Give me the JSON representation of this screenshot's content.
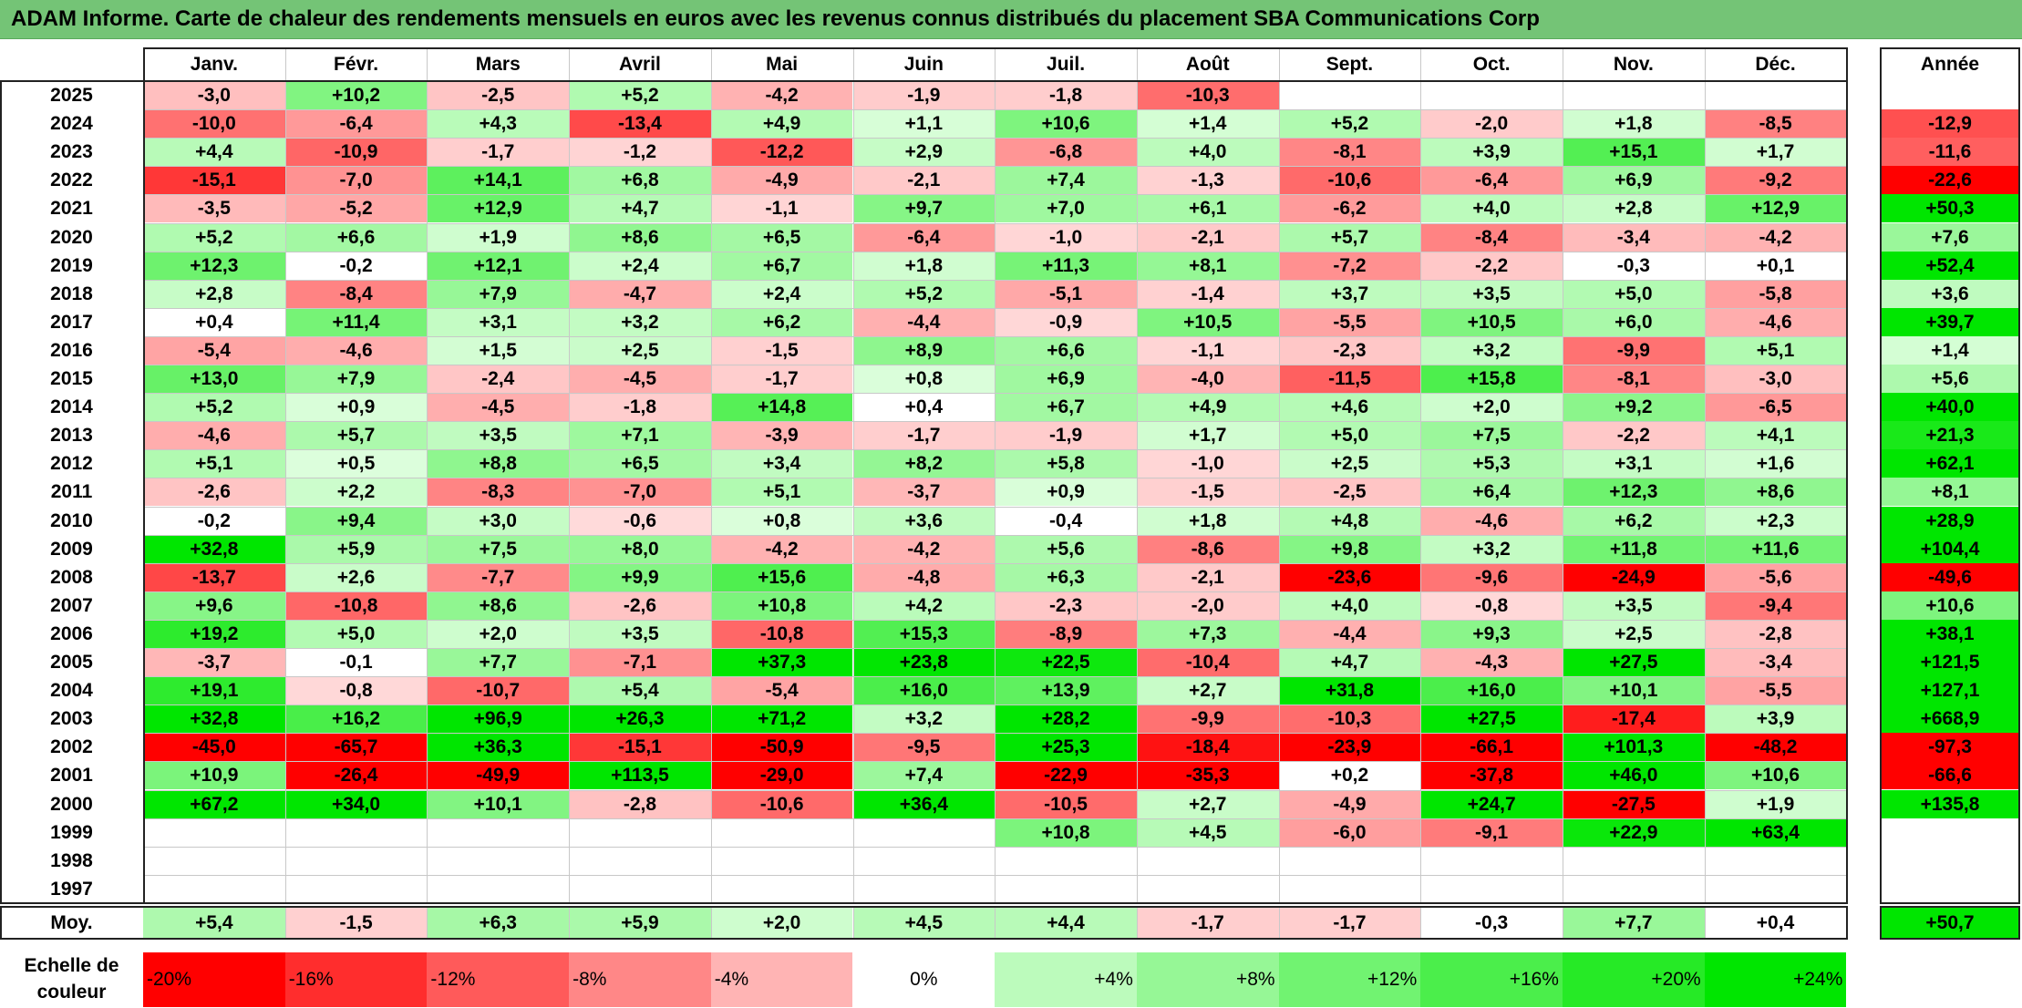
{
  "title": "ADAM Informe. Carte de chaleur des rendements mensuels en euros avec les revenus connus distribués du placement SBA Communications Corp",
  "colors": {
    "title_bar": "#74c476",
    "neg_max": "#ff0000",
    "pos_max": "#00e600",
    "neutral": "#ffffff"
  },
  "chart_data": {
    "type": "heatmap",
    "months": [
      "Janv.",
      "Févr.",
      "Mars",
      "Avril",
      "Mai",
      "Juin",
      "Juil.",
      "Août",
      "Sept.",
      "Oct.",
      "Nov.",
      "Déc."
    ],
    "year_header": "Année",
    "avg_label": "Moy.",
    "rows": [
      {
        "year": "2025",
        "values": [
          "-3,0",
          "+10,2",
          "-2,5",
          "+5,2",
          "-4,2",
          "-1,9",
          "-1,8",
          "-10,3",
          "",
          "",
          "",
          ""
        ],
        "annual": ""
      },
      {
        "year": "2024",
        "values": [
          "-10,0",
          "-6,4",
          "+4,3",
          "-13,4",
          "+4,9",
          "+1,1",
          "+10,6",
          "+1,4",
          "+5,2",
          "-2,0",
          "+1,8",
          "-8,5"
        ],
        "annual": "-12,9"
      },
      {
        "year": "2023",
        "values": [
          "+4,4",
          "-10,9",
          "-1,7",
          "-1,2",
          "-12,2",
          "+2,9",
          "-6,8",
          "+4,0",
          "-8,1",
          "+3,9",
          "+15,1",
          "+1,7"
        ],
        "annual": "-11,6"
      },
      {
        "year": "2022",
        "values": [
          "-15,1",
          "-7,0",
          "+14,1",
          "+6,8",
          "-4,9",
          "-2,1",
          "+7,4",
          "-1,3",
          "-10,6",
          "-6,4",
          "+6,9",
          "-9,2"
        ],
        "annual": "-22,6"
      },
      {
        "year": "2021",
        "values": [
          "-3,5",
          "-5,2",
          "+12,9",
          "+4,7",
          "-1,1",
          "+9,7",
          "+7,0",
          "+6,1",
          "-6,2",
          "+4,0",
          "+2,8",
          "+12,9"
        ],
        "annual": "+50,3"
      },
      {
        "year": "2020",
        "values": [
          "+5,2",
          "+6,6",
          "+1,9",
          "+8,6",
          "+6,5",
          "-6,4",
          "-1,0",
          "-2,1",
          "+5,7",
          "-8,4",
          "-3,4",
          "-4,2"
        ],
        "annual": "+7,6"
      },
      {
        "year": "2019",
        "values": [
          "+12,3",
          "-0,2",
          "+12,1",
          "+2,4",
          "+6,7",
          "+1,8",
          "+11,3",
          "+8,1",
          "-7,2",
          "-2,2",
          "-0,3",
          "+0,1"
        ],
        "annual": "+52,4"
      },
      {
        "year": "2018",
        "values": [
          "+2,8",
          "-8,4",
          "+7,9",
          "-4,7",
          "+2,4",
          "+5,2",
          "-5,1",
          "-1,4",
          "+3,7",
          "+3,5",
          "+5,0",
          "-5,8"
        ],
        "annual": "+3,6"
      },
      {
        "year": "2017",
        "values": [
          "+0,4",
          "+11,4",
          "+3,1",
          "+3,2",
          "+6,2",
          "-4,4",
          "-0,9",
          "+10,5",
          "-5,5",
          "+10,5",
          "+6,0",
          "-4,6"
        ],
        "annual": "+39,7"
      },
      {
        "year": "2016",
        "values": [
          "-5,4",
          "-4,6",
          "+1,5",
          "+2,5",
          "-1,5",
          "+8,9",
          "+6,6",
          "-1,1",
          "-2,3",
          "+3,2",
          "-9,9",
          "+5,1"
        ],
        "annual": "+1,4"
      },
      {
        "year": "2015",
        "values": [
          "+13,0",
          "+7,9",
          "-2,4",
          "-4,5",
          "-1,7",
          "+0,8",
          "+6,9",
          "-4,0",
          "-11,5",
          "+15,8",
          "-8,1",
          "-3,0"
        ],
        "annual": "+5,6"
      },
      {
        "year": "2014",
        "values": [
          "+5,2",
          "+0,9",
          "-4,5",
          "-1,8",
          "+14,8",
          "+0,4",
          "+6,7",
          "+4,9",
          "+4,6",
          "+2,0",
          "+9,2",
          "-6,5"
        ],
        "annual": "+40,0"
      },
      {
        "year": "2013",
        "values": [
          "-4,6",
          "+5,7",
          "+3,5",
          "+7,1",
          "-3,9",
          "-1,7",
          "-1,9",
          "+1,7",
          "+5,0",
          "+7,5",
          "-2,2",
          "+4,1"
        ],
        "annual": "+21,3"
      },
      {
        "year": "2012",
        "values": [
          "+5,1",
          "+0,5",
          "+8,8",
          "+6,5",
          "+3,4",
          "+8,2",
          "+5,8",
          "-1,0",
          "+2,5",
          "+5,3",
          "+3,1",
          "+1,6"
        ],
        "annual": "+62,1"
      },
      {
        "year": "2011",
        "values": [
          "-2,6",
          "+2,2",
          "-8,3",
          "-7,0",
          "+5,1",
          "-3,7",
          "+0,9",
          "-1,5",
          "-2,5",
          "+6,4",
          "+12,3",
          "+8,6"
        ],
        "annual": "+8,1"
      },
      {
        "year": "2010",
        "values": [
          "-0,2",
          "+9,4",
          "+3,0",
          "-0,6",
          "+0,8",
          "+3,6",
          "-0,4",
          "+1,8",
          "+4,8",
          "-4,6",
          "+6,2",
          "+2,3"
        ],
        "annual": "+28,9"
      },
      {
        "year": "2009",
        "values": [
          "+32,8",
          "+5,9",
          "+7,5",
          "+8,0",
          "-4,2",
          "-4,2",
          "+5,6",
          "-8,6",
          "+9,8",
          "+3,2",
          "+11,8",
          "+11,6"
        ],
        "annual": "+104,4"
      },
      {
        "year": "2008",
        "values": [
          "-13,7",
          "+2,6",
          "-7,7",
          "+9,9",
          "+15,6",
          "-4,8",
          "+6,3",
          "-2,1",
          "-23,6",
          "-9,6",
          "-24,9",
          "-5,6"
        ],
        "annual": "-49,6"
      },
      {
        "year": "2007",
        "values": [
          "+9,6",
          "-10,8",
          "+8,6",
          "-2,6",
          "+10,8",
          "+4,2",
          "-2,3",
          "-2,0",
          "+4,0",
          "-0,8",
          "+3,5",
          "-9,4"
        ],
        "annual": "+10,6"
      },
      {
        "year": "2006",
        "values": [
          "+19,2",
          "+5,0",
          "+2,0",
          "+3,5",
          "-10,8",
          "+15,3",
          "-8,9",
          "+7,3",
          "-4,4",
          "+9,3",
          "+2,5",
          "-2,8"
        ],
        "annual": "+38,1"
      },
      {
        "year": "2005",
        "values": [
          "-3,7",
          "-0,1",
          "+7,7",
          "-7,1",
          "+37,3",
          "+23,8",
          "+22,5",
          "-10,4",
          "+4,7",
          "-4,3",
          "+27,5",
          "-3,4"
        ],
        "annual": "+121,5"
      },
      {
        "year": "2004",
        "values": [
          "+19,1",
          "-0,8",
          "-10,7",
          "+5,4",
          "-5,4",
          "+16,0",
          "+13,9",
          "+2,7",
          "+31,8",
          "+16,0",
          "+10,1",
          "-5,5"
        ],
        "annual": "+127,1"
      },
      {
        "year": "2003",
        "values": [
          "+32,8",
          "+16,2",
          "+96,9",
          "+26,3",
          "+71,2",
          "+3,2",
          "+28,2",
          "-9,9",
          "-10,3",
          "+27,5",
          "-17,4",
          "+3,9"
        ],
        "annual": "+668,9"
      },
      {
        "year": "2002",
        "values": [
          "-45,0",
          "-65,7",
          "+36,3",
          "-15,1",
          "-50,9",
          "-9,5",
          "+25,3",
          "-18,4",
          "-23,9",
          "-66,1",
          "+101,3",
          "-48,2"
        ],
        "annual": "-97,3"
      },
      {
        "year": "2001",
        "values": [
          "+10,9",
          "-26,4",
          "-49,9",
          "+113,5",
          "-29,0",
          "+7,4",
          "-22,9",
          "-35,3",
          "+0,2",
          "-37,8",
          "+46,0",
          "+10,6"
        ],
        "annual": "-66,6"
      },
      {
        "year": "2000",
        "values": [
          "+67,2",
          "+34,0",
          "+10,1",
          "-2,8",
          "-10,6",
          "+36,4",
          "-10,5",
          "+2,7",
          "-4,9",
          "+24,7",
          "-27,5",
          "+1,9"
        ],
        "annual": "+135,8"
      },
      {
        "year": "1999",
        "values": [
          "",
          "",
          "",
          "",
          "",
          "",
          "+10,8",
          "+4,5",
          "-6,0",
          "-9,1",
          "+22,9",
          "+63,4"
        ],
        "annual": ""
      },
      {
        "year": "1998",
        "values": [
          "",
          "",
          "",
          "",
          "",
          "",
          "",
          "",
          "",
          "",
          "",
          ""
        ],
        "annual": ""
      },
      {
        "year": "1997",
        "values": [
          "",
          "",
          "",
          "",
          "",
          "",
          "",
          "",
          "",
          "",
          "",
          ""
        ],
        "annual": ""
      }
    ],
    "averages": [
      "+5,4",
      "-1,5",
      "+6,3",
      "+5,9",
      "+2,0",
      "+4,5",
      "+4,4",
      "-1,7",
      "-1,7",
      "-0,3",
      "+7,7",
      "+0,4"
    ],
    "average_annual": "+50,7",
    "scale": {
      "label": "Echelle de couleur",
      "steps": [
        "-20%",
        "-16%",
        "-12%",
        "-8%",
        "-4%",
        "0%",
        "+4%",
        "+8%",
        "+12%",
        "+16%",
        "+20%",
        "+24%"
      ]
    }
  }
}
